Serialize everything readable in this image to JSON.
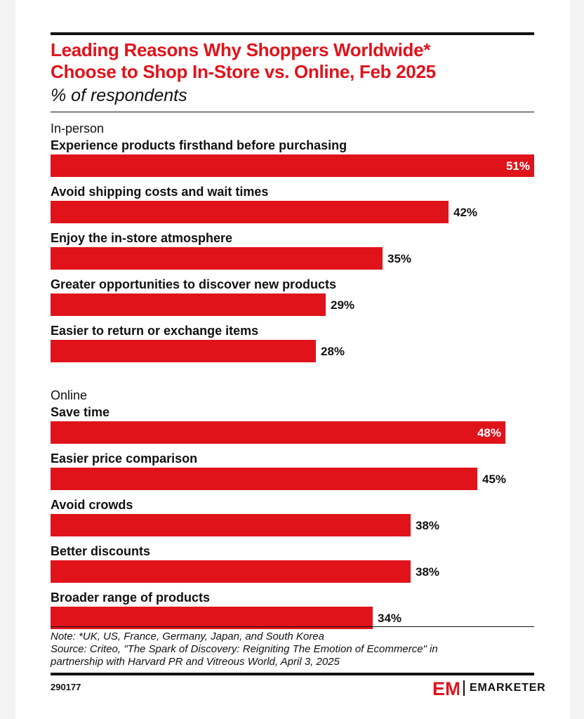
{
  "header": {
    "title_line1": "Leading Reasons Why Shoppers Worldwide*",
    "title_line2": "Choose to Shop In-Store vs. Online, Feb 2025",
    "subtitle": "% of respondents"
  },
  "chart_data": {
    "type": "bar",
    "orientation": "horizontal",
    "unit": "%",
    "xlim": [
      0,
      51
    ],
    "grid": false,
    "groups": [
      {
        "name": "In-person",
        "categories": [
          "Experience products firsthand before purchasing",
          "Avoid shipping costs and wait times",
          "Enjoy the in-store atmosphere",
          "Greater opportunities to discover new products",
          "Easier to return or exchange items"
        ],
        "values": [
          51,
          42,
          35,
          29,
          28
        ]
      },
      {
        "name": "Online",
        "categories": [
          "Save time",
          "Easier price comparison",
          "Avoid crowds",
          "Better discounts",
          "Broader range of products"
        ],
        "values": [
          48,
          45,
          38,
          38,
          34
        ]
      }
    ],
    "colors": {
      "bar": "#e0131b",
      "label_inside": "#ffffff",
      "label_outside": "#111111"
    }
  },
  "footer": {
    "note": "Note: *UK, US, France, Germany, Japan, and South Korea",
    "source_line1": "Source: Criteo, \"The Spark of Discovery: Reigniting The Emotion of Ecommerce\" in",
    "source_line2": "partnership with Harvard PR and Vitreous World, April 3, 2025",
    "chart_id": "290177",
    "brand_mark": "EM",
    "brand": "EMARKETER"
  }
}
